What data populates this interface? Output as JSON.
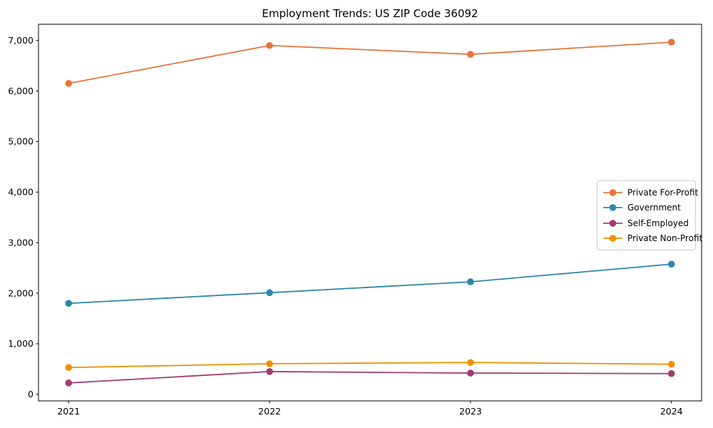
{
  "figure": {
    "background": "#ffffff",
    "spine_color": "#000000",
    "text_color": "#000000",
    "legend_border_color": "#cccccc"
  },
  "chart_data": {
    "type": "line",
    "title": "Employment Trends: US ZIP Code 36092",
    "xlabel": "",
    "ylabel": "",
    "x": [
      2021,
      2022,
      2023,
      2024
    ],
    "x_tick_labels": [
      "2021",
      "2022",
      "2023",
      "2024"
    ],
    "series": [
      {
        "name": "Private For-Profit",
        "color": "#E8743B",
        "values": [
          6150,
          6900,
          6725,
          6965
        ]
      },
      {
        "name": "Government",
        "color": "#2E86AB",
        "values": [
          1800,
          2010,
          2225,
          2575
        ]
      },
      {
        "name": "Self-Employed",
        "color": "#A23B72",
        "values": [
          225,
          450,
          420,
          410
        ]
      },
      {
        "name": "Private Non-Profit",
        "color": "#F18F01",
        "values": [
          530,
          605,
          630,
          595
        ]
      }
    ],
    "y_ticks": [
      0,
      1000,
      2000,
      3000,
      4000,
      5000,
      6000,
      7000
    ],
    "y_tick_labels": [
      "0",
      "1,000",
      "2,000",
      "3,000",
      "4,000",
      "5,000",
      "6,000",
      "7,000"
    ],
    "xlim": [
      2020.85,
      2024.15
    ],
    "ylim": [
      -130,
      7320
    ],
    "grid": false,
    "legend_position": "center-right",
    "marker": "circle",
    "line_width": 1.8,
    "marker_radius": 4.8
  }
}
